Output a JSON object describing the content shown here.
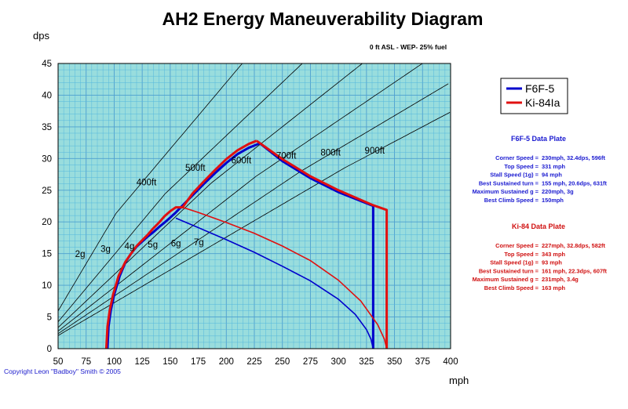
{
  "chart_data": {
    "type": "line",
    "title": "AH2 Energy Maneuverability Diagram",
    "subtitle": "0 ft ASL - WEP- 25% fuel",
    "xlabel": "mph",
    "ylabel": "dps",
    "xlim": [
      50,
      400
    ],
    "ylim": [
      0,
      45
    ],
    "x_ticks": [
      50,
      75,
      100,
      125,
      150,
      175,
      200,
      225,
      250,
      275,
      300,
      325,
      350,
      375,
      400
    ],
    "y_ticks": [
      0,
      5,
      10,
      15,
      20,
      25,
      30,
      35,
      40,
      45
    ],
    "grid": true,
    "legend_position": "right",
    "colors": {
      "plot_background": "#99dddd",
      "minor_grid": "#55b7dd",
      "major_grid": "#4d9fd0",
      "reference_lines": "#000000",
      "f6f": "#0000cc",
      "ki84": "#e01010",
      "plate_f6f_text": "#1a1ad0",
      "plate_ki84_text": "#d01010",
      "copyright_text": "#1a1acc"
    },
    "g_lines": [
      {
        "label": "2g",
        "g": 2
      },
      {
        "label": "3g",
        "g": 3
      },
      {
        "label": "4g",
        "g": 4
      },
      {
        "label": "5g",
        "g": 5
      },
      {
        "label": "6g",
        "g": 6
      },
      {
        "label": "7g",
        "g": 7
      }
    ],
    "radius_lines": [
      {
        "label": "400ft",
        "radius_ft": 400
      },
      {
        "label": "500ft",
        "radius_ft": 500
      },
      {
        "label": "600ft",
        "radius_ft": 600
      },
      {
        "label": "700ft",
        "radius_ft": 700
      },
      {
        "label": "800ft",
        "radius_ft": 800
      },
      {
        "label": "900ft",
        "radius_ft": 900
      }
    ],
    "series": [
      {
        "name": "F6F-5",
        "color": "#0000cc",
        "instantaneous": {
          "x": [
            94,
            95,
            97,
            100,
            105,
            110,
            115,
            120,
            125,
            130,
            135,
            140,
            145,
            150,
            155,
            160,
            170,
            180,
            190,
            200,
            210,
            220,
            230
          ],
          "y": [
            0,
            3.5,
            6,
            8.5,
            11.5,
            13.6,
            15.0,
            16.1,
            16.9,
            17.7,
            18.4,
            19.2,
            19.9,
            20.7,
            21.5,
            22.4,
            24.2,
            26.0,
            27.7,
            29.3,
            30.7,
            31.7,
            32.4
          ]
        },
        "sustained": {
          "x": [
            155,
            175,
            200,
            225,
            250,
            275,
            300,
            315,
            325,
            329,
            331
          ],
          "y": [
            20.6,
            19.1,
            17.2,
            15.2,
            13.0,
            10.7,
            7.8,
            5.4,
            3.0,
            1.5,
            0
          ]
        },
        "top_speed_line": {
          "x": [
            230,
            250,
            275,
            300,
            330,
            331,
            331
          ],
          "y": [
            32.4,
            29.6,
            26.9,
            24.7,
            22.6,
            22.5,
            0
          ]
        }
      },
      {
        "name": "Ki-84Ia",
        "color": "#e01010",
        "instantaneous": {
          "x": [
            93,
            94,
            96,
            99,
            104,
            110,
            115,
            120,
            125,
            130,
            135,
            140,
            145,
            150,
            155,
            161,
            170,
            180,
            190,
            200,
            210,
            220,
            227
          ],
          "y": [
            0,
            3.5,
            6,
            8.5,
            11.5,
            13.7,
            15.0,
            16.2,
            17.1,
            18.0,
            19.0,
            19.9,
            20.9,
            21.7,
            22.3,
            22.3,
            24.5,
            26.4,
            28.2,
            29.9,
            31.3,
            32.3,
            32.8
          ]
        },
        "sustained": {
          "x": [
            161,
            175,
            200,
            225,
            250,
            275,
            300,
            320,
            335,
            341,
            343
          ],
          "y": [
            22.3,
            21.5,
            19.9,
            18.2,
            16.2,
            13.9,
            10.8,
            7.5,
            3.8,
            1.5,
            0
          ]
        },
        "top_speed_line": {
          "x": [
            227,
            250,
            275,
            300,
            330,
            343,
            343
          ],
          "y": [
            32.8,
            29.9,
            27.2,
            25.0,
            22.7,
            21.9,
            0
          ]
        }
      }
    ]
  },
  "legend": {
    "entries": [
      {
        "label": "F6F-5",
        "color": "#0000cc"
      },
      {
        "label": "Ki-84Ia",
        "color": "#e01010"
      }
    ]
  },
  "plates": [
    {
      "title": "F6F-5 Data Plate",
      "color": "#1a1ad0",
      "rows": [
        {
          "label": "Corner Speed =",
          "value": "230mph, 32.4dps, 596ft"
        },
        {
          "label": "Top Speed =",
          "value": "331 mph"
        },
        {
          "label": "Stall Speed (1g) =",
          "value": "94 mph"
        },
        {
          "label": "Best Sustained turn =",
          "value": "155 mph, 20.6dps, 631ft"
        },
        {
          "label": "Maximum Sustained g =",
          "value": "220mph, 3g"
        },
        {
          "label": "Best Climb Speed =",
          "value": "150mph"
        }
      ]
    },
    {
      "title": "Ki-84 Data Plate",
      "color": "#d01010",
      "rows": [
        {
          "label": "Corner Speed =",
          "value": "227mph, 32.8dps, 582ft"
        },
        {
          "label": "Top Speed =",
          "value": "343 mph"
        },
        {
          "label": "Stall Speed (1g) =",
          "value": "93 mph"
        },
        {
          "label": "Best Sustained turn =",
          "value": "161 mph, 22.3dps, 607ft"
        },
        {
          "label": "Maximum Sustained g =",
          "value": "231mph, 3.4g"
        },
        {
          "label": "Best Climb Speed =",
          "value": "163 mph"
        }
      ]
    }
  ],
  "copyright": "Copyright Leon \"Badboy\" Smith © 2005"
}
